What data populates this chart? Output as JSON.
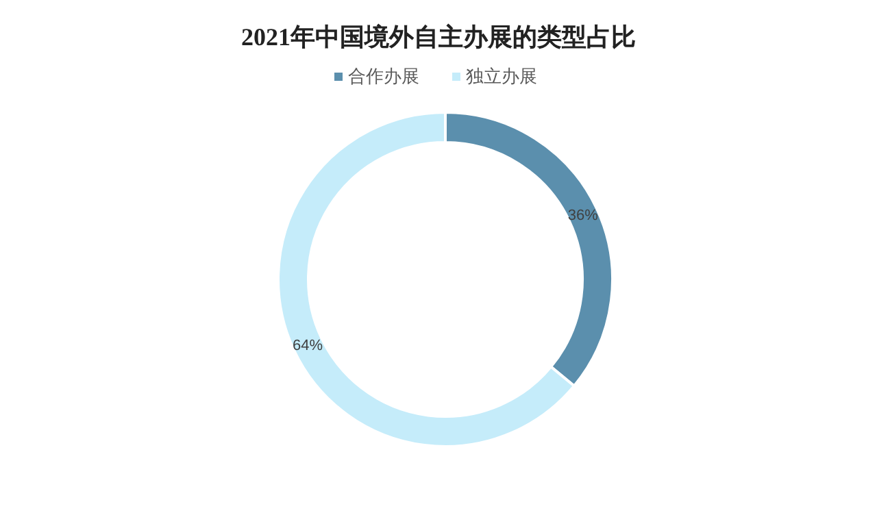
{
  "chart_data": {
    "type": "donut",
    "title": "2021年中国境外自主办展的类型占比",
    "categories": [
      "合作办展",
      "独立办展"
    ],
    "values": [
      36,
      64
    ],
    "colors": [
      "#5b8fad",
      "#c5ecfa"
    ],
    "value_labels": [
      "36%",
      "64%"
    ],
    "legend": "top"
  }
}
